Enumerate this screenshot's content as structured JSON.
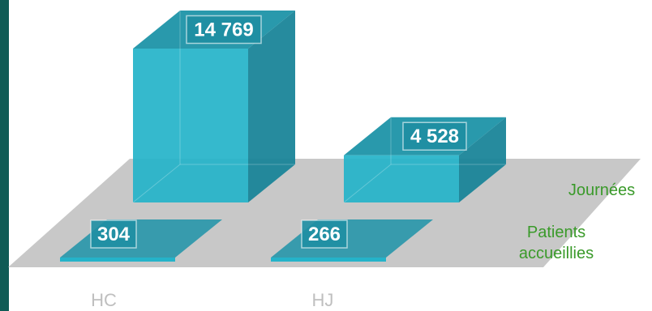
{
  "chart_data": {
    "type": "bar",
    "categories": [
      "HC",
      "HJ"
    ],
    "series": [
      {
        "name": "Journées",
        "values": [
          14769,
          4528
        ]
      },
      {
        "name": "Patients accueillies",
        "values": [
          304,
          266
        ]
      }
    ],
    "value_labels": {
      "Journées": [
        "14 769",
        "4 528"
      ],
      "Patients accueillies": [
        "304",
        "266"
      ]
    },
    "series_label_lines": {
      "Journées": [
        "Journées"
      ],
      "Patients accueillies": [
        "Patients",
        "accueillies"
      ]
    },
    "colors": {
      "bar_front": "#24b3c9",
      "bar_side": "#1a8599",
      "bar_top": "#1d93a8",
      "floor": "#c8c8c8",
      "left_border": "#0f5b55",
      "series_label": "#3a9a2a",
      "category_label": "#bfbfbf",
      "value_label_text": "#ffffff"
    },
    "style": "3d-bar"
  }
}
